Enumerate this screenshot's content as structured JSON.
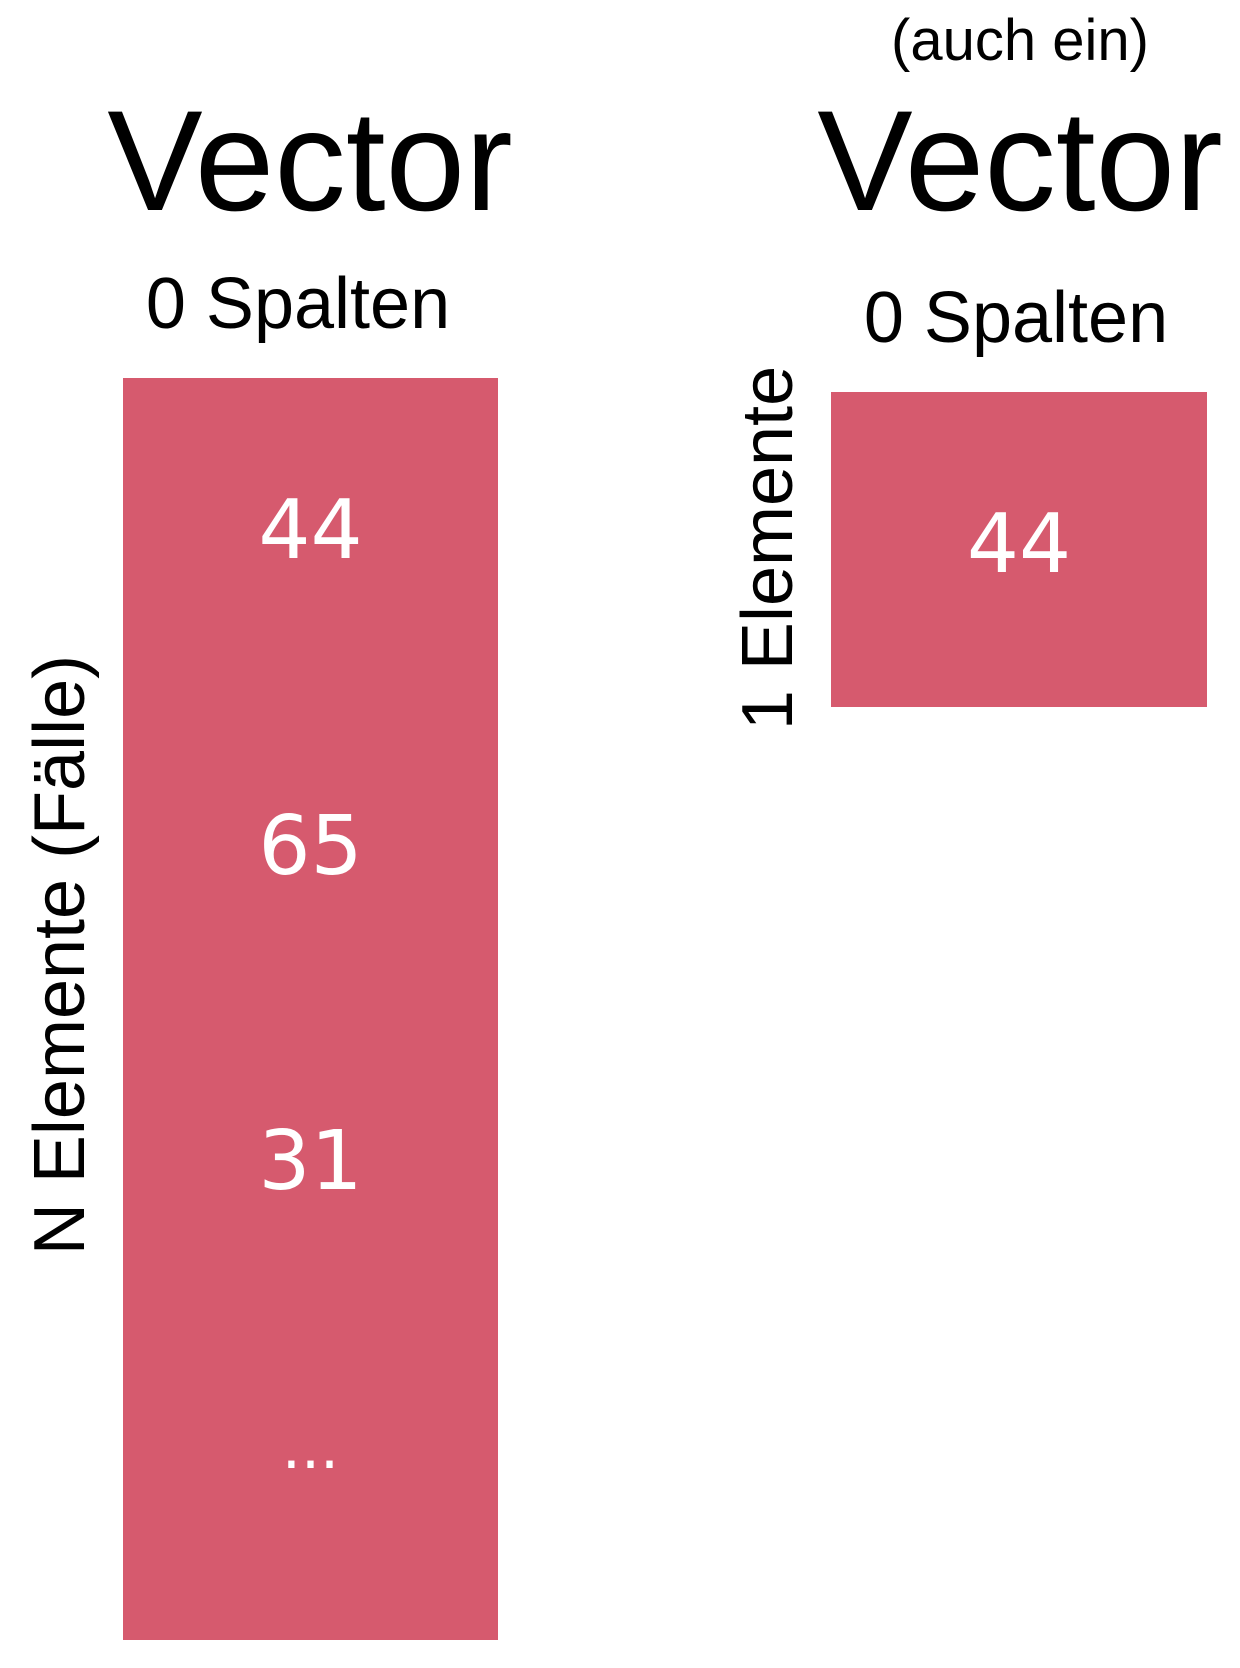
{
  "colors": {
    "vector_fill": "#d65a6e",
    "cell_text": "#ffffff",
    "label_text": "#000000"
  },
  "left": {
    "title": "Vector",
    "columns_label": "0 Spalten",
    "rows_label": "N Elemente (Fälle)",
    "cells": [
      "44",
      "65",
      "31",
      "..."
    ]
  },
  "right": {
    "subtitle": "(auch ein)",
    "title": "Vector",
    "columns_label": "0 Spalten",
    "rows_label": "1 Elemente",
    "cells": [
      "44"
    ]
  }
}
